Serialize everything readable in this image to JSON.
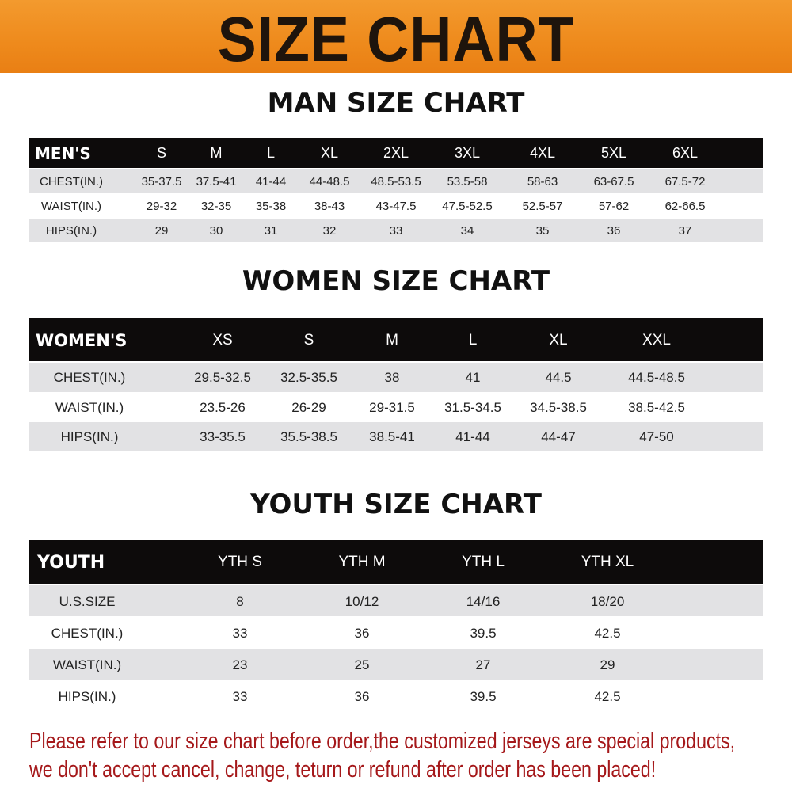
{
  "banner": {
    "title": "SIZE CHART",
    "color": "#ee8a1c"
  },
  "men": {
    "title": "MAN SIZE CHART",
    "header": [
      "MEN'S",
      "S",
      "M",
      "L",
      "XL",
      "2XL",
      "3XL",
      "4XL",
      "5XL",
      "6XL"
    ],
    "rows": [
      [
        "CHEST(IN.)",
        "35-37.5",
        "37.5-41",
        "41-44",
        "44-48.5",
        "48.5-53.5",
        "53.5-58",
        "58-63",
        "63-67.5",
        "67.5-72"
      ],
      [
        "WAIST(IN.)",
        "29-32",
        "32-35",
        "35-38",
        "38-43",
        "43-47.5",
        "47.5-52.5",
        "52.5-57",
        "57-62",
        "62-66.5"
      ],
      [
        "HIPS(IN.)",
        "29",
        "30",
        "31",
        "32",
        "33",
        "34",
        "35",
        "36",
        "37"
      ]
    ]
  },
  "women": {
    "title": "WOMEN SIZE CHART",
    "header": [
      "WOMEN'S",
      "XS",
      "S",
      "M",
      "L",
      "XL",
      "XXL"
    ],
    "rows": [
      [
        "CHEST(IN.)",
        "29.5-32.5",
        "32.5-35.5",
        "38",
        "41",
        "44.5",
        "44.5-48.5"
      ],
      [
        "WAIST(IN.)",
        "23.5-26",
        "26-29",
        "29-31.5",
        "31.5-34.5",
        "34.5-38.5",
        "38.5-42.5"
      ],
      [
        "HIPS(IN.)",
        "33-35.5",
        "35.5-38.5",
        "38.5-41",
        "41-44",
        "44-47",
        "47-50"
      ]
    ]
  },
  "youth": {
    "title": "YOUTH SIZE CHART",
    "header": [
      "YOUTH",
      "YTH S",
      "YTH M",
      "YTH L",
      "YTH XL"
    ],
    "rows": [
      [
        "U.S.SIZE",
        "8",
        "10/12",
        "14/16",
        "18/20"
      ],
      [
        "CHEST(IN.)",
        "33",
        "36",
        "39.5",
        "42.5"
      ],
      [
        "WAIST(IN.)",
        "23",
        "25",
        "27",
        "29"
      ],
      [
        "HIPS(IN.)",
        "33",
        "36",
        "39.5",
        "42.5"
      ]
    ]
  },
  "footer": {
    "line1": "Please refer to our size chart before order,the customized jerseys are special products,",
    "line2": "we don't accept cancel, change, teturn or refund after order has been placed!",
    "color": "#a5181a"
  }
}
